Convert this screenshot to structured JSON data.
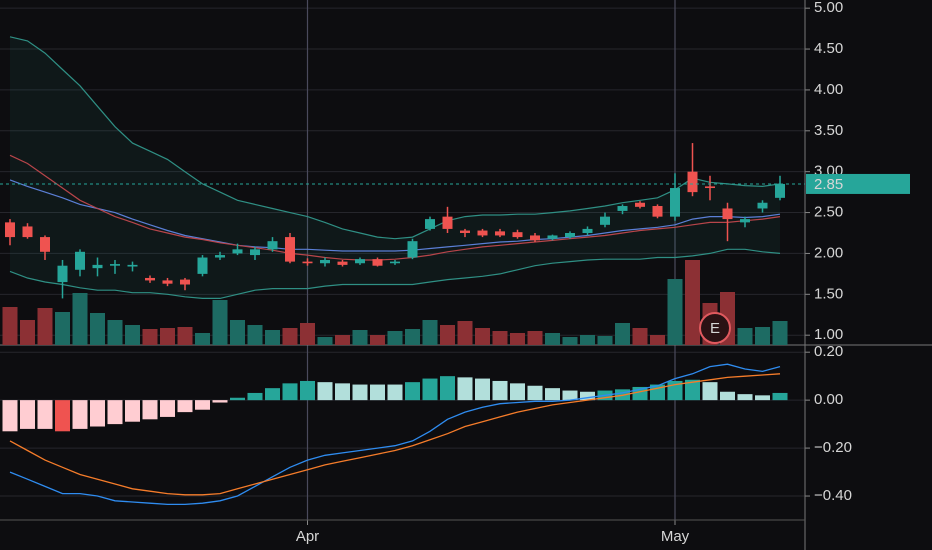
{
  "chart_data": [
    {
      "type": "candlestick",
      "categories": [
        null,
        null,
        null,
        null,
        null,
        null,
        null,
        null,
        null,
        null,
        null,
        null,
        null,
        null,
        null,
        null,
        null,
        "Apr",
        null,
        null,
        null,
        null,
        null,
        null,
        null,
        null,
        null,
        null,
        null,
        null,
        null,
        null,
        null,
        null,
        null,
        null,
        null,
        null,
        "May",
        null,
        null,
        null,
        null,
        null,
        null
      ],
      "open": [
        2.38,
        2.33,
        2.2,
        1.65,
        1.8,
        1.82,
        1.85,
        1.84,
        1.7,
        1.67,
        1.68,
        1.75,
        1.95,
        2.0,
        1.98,
        2.05,
        2.2,
        1.9,
        1.88,
        1.9,
        1.88,
        1.93,
        1.88,
        1.95,
        2.3,
        2.45,
        2.28,
        2.28,
        2.27,
        2.26,
        2.22,
        2.18,
        2.2,
        2.25,
        2.35,
        2.52,
        2.62,
        2.58,
        2.45,
        3.0,
        2.82,
        2.55,
        2.38,
        2.55,
        2.68
      ],
      "high": [
        2.42,
        2.37,
        2.22,
        1.92,
        2.05,
        1.95,
        1.92,
        1.9,
        1.73,
        1.7,
        1.7,
        1.98,
        2.02,
        2.12,
        2.08,
        2.2,
        2.25,
        1.94,
        1.95,
        1.92,
        1.95,
        1.95,
        1.92,
        2.18,
        2.45,
        2.57,
        2.3,
        2.3,
        2.3,
        2.29,
        2.25,
        2.23,
        2.27,
        2.33,
        2.5,
        2.6,
        2.64,
        2.6,
        2.98,
        3.35,
        2.95,
        2.62,
        2.45,
        2.65,
        2.95
      ],
      "low": [
        2.1,
        2.18,
        1.92,
        1.45,
        1.72,
        1.72,
        1.75,
        1.78,
        1.64,
        1.6,
        1.55,
        1.72,
        1.92,
        1.98,
        1.92,
        2.02,
        1.88,
        1.85,
        1.84,
        1.84,
        1.86,
        1.84,
        1.86,
        1.93,
        2.28,
        2.25,
        2.2,
        2.2,
        2.2,
        2.18,
        2.14,
        2.16,
        2.18,
        2.22,
        2.32,
        2.48,
        2.55,
        2.43,
        2.4,
        2.7,
        2.65,
        2.15,
        2.32,
        2.5,
        2.65
      ],
      "close": [
        2.2,
        2.2,
        2.02,
        1.85,
        2.02,
        1.86,
        1.87,
        1.86,
        1.67,
        1.63,
        1.62,
        1.95,
        1.98,
        2.05,
        2.05,
        2.15,
        1.9,
        1.88,
        1.92,
        1.86,
        1.93,
        1.85,
        1.9,
        2.15,
        2.42,
        2.3,
        2.25,
        2.22,
        2.22,
        2.2,
        2.16,
        2.22,
        2.25,
        2.3,
        2.45,
        2.58,
        2.57,
        2.45,
        2.8,
        2.75,
        2.8,
        2.42,
        2.42,
        2.62,
        2.85
      ],
      "volume": [
        38,
        25,
        37,
        33,
        52,
        32,
        25,
        20,
        16,
        17,
        18,
        12,
        45,
        25,
        20,
        15,
        17,
        22,
        8,
        10,
        15,
        10,
        14,
        16,
        25,
        20,
        24,
        17,
        14,
        12,
        14,
        12,
        8,
        10,
        9,
        22,
        17,
        10,
        66,
        85,
        42,
        53,
        17,
        18,
        24
      ],
      "up_color": "#26a69a",
      "down_color": "#ef5350",
      "volume_up_color": "#1d6b63",
      "volume_down_color": "#8c3034",
      "series": [
        {
          "color": "#2f8f84",
          "values": [
            4.65,
            4.6,
            4.45,
            4.25,
            4.05,
            3.8,
            3.55,
            3.35,
            3.25,
            3.15,
            3.0,
            2.85,
            2.75,
            2.65,
            2.6,
            2.55,
            2.5,
            2.45,
            2.38,
            2.3,
            2.25,
            2.2,
            2.18,
            2.2,
            2.3,
            2.4,
            2.45,
            2.47,
            2.47,
            2.48,
            2.48,
            2.5,
            2.52,
            2.55,
            2.58,
            2.62,
            2.65,
            2.68,
            2.78,
            2.92,
            2.87,
            2.85,
            2.83,
            2.82,
            2.85
          ]
        },
        {
          "color": "#2f8f84",
          "values": [
            1.78,
            1.7,
            1.65,
            1.62,
            1.58,
            1.55,
            1.55,
            1.52,
            1.52,
            1.5,
            1.47,
            1.45,
            1.45,
            1.5,
            1.55,
            1.57,
            1.57,
            1.57,
            1.6,
            1.62,
            1.62,
            1.62,
            1.62,
            1.62,
            1.65,
            1.68,
            1.7,
            1.72,
            1.75,
            1.8,
            1.85,
            1.88,
            1.9,
            1.92,
            1.93,
            1.93,
            1.93,
            1.95,
            1.95,
            1.97,
            2.0,
            2.05,
            2.05,
            2.02,
            2.0
          ]
        },
        {
          "color": "#5b7fd6",
          "values": [
            2.9,
            2.82,
            2.75,
            2.68,
            2.6,
            2.55,
            2.5,
            2.42,
            2.35,
            2.28,
            2.22,
            2.18,
            2.14,
            2.1,
            2.08,
            2.07,
            2.05,
            2.05,
            2.04,
            2.03,
            2.03,
            2.03,
            2.03,
            2.04,
            2.06,
            2.08,
            2.1,
            2.12,
            2.14,
            2.15,
            2.17,
            2.18,
            2.2,
            2.22,
            2.25,
            2.28,
            2.3,
            2.32,
            2.35,
            2.42,
            2.45,
            2.45,
            2.44,
            2.45,
            2.48
          ]
        },
        {
          "color": "#b8454a",
          "values": [
            3.2,
            3.1,
            2.95,
            2.8,
            2.65,
            2.55,
            2.45,
            2.38,
            2.3,
            2.25,
            2.2,
            2.17,
            2.13,
            2.1,
            2.07,
            2.04,
            2.0,
            1.98,
            1.95,
            1.93,
            1.92,
            1.92,
            1.93,
            1.95,
            1.98,
            2.02,
            2.05,
            2.08,
            2.1,
            2.12,
            2.14,
            2.16,
            2.18,
            2.2,
            2.22,
            2.25,
            2.28,
            2.3,
            2.32,
            2.35,
            2.38,
            2.38,
            2.4,
            2.42,
            2.45
          ]
        }
      ],
      "band_fill": "rgba(38,166,154,0.07)",
      "last_price": 2.85,
      "last_price_color": "#26a69a",
      "event_label": "E",
      "event_color": "#e05a5f",
      "ylim": [
        0.88,
        5.1
      ],
      "yticks": [
        {
          "value": 1,
          "label": "1.00"
        },
        {
          "value": 1.5,
          "label": "1.50"
        },
        {
          "value": 2,
          "label": "2.00"
        },
        {
          "value": 2.5,
          "label": "2.50"
        },
        {
          "value": 3,
          "label": "3.00"
        },
        {
          "value": 3.5,
          "label": "3.50"
        },
        {
          "value": 4,
          "label": "4.00"
        },
        {
          "value": 4.5,
          "label": "4.50"
        },
        {
          "value": 5,
          "label": "5.00"
        }
      ],
      "grid": true
    },
    {
      "type": "macd",
      "histogram": [
        -0.13,
        -0.12,
        -0.12,
        -0.13,
        -0.12,
        -0.11,
        -0.1,
        -0.09,
        -0.08,
        -0.07,
        -0.05,
        -0.04,
        -0.01,
        0.01,
        0.03,
        0.05,
        0.07,
        0.08,
        0.075,
        0.07,
        0.065,
        0.065,
        0.065,
        0.075,
        0.09,
        0.1,
        0.095,
        0.09,
        0.08,
        0.07,
        0.06,
        0.05,
        0.04,
        0.035,
        0.04,
        0.045,
        0.055,
        0.065,
        0.08,
        0.085,
        0.075,
        0.035,
        0.025,
        0.02,
        0.03
      ],
      "hist_colors": {
        "up_rising": "#26a69a",
        "up_falling": "#b2dfdb",
        "down_falling": "#ef5350",
        "down_rising": "#ffcdd2"
      },
      "series": [
        {
          "color": "#2f8cf0",
          "values": [
            -0.3,
            -0.33,
            -0.36,
            -0.39,
            -0.39,
            -0.4,
            -0.42,
            -0.425,
            -0.43,
            -0.435,
            -0.435,
            -0.43,
            -0.42,
            -0.4,
            -0.36,
            -0.32,
            -0.28,
            -0.25,
            -0.23,
            -0.22,
            -0.21,
            -0.2,
            -0.19,
            -0.17,
            -0.13,
            -0.08,
            -0.05,
            -0.03,
            -0.015,
            -0.01,
            -0.005,
            -0.005,
            0,
            0.01,
            0.02,
            0.03,
            0.045,
            0.06,
            0.09,
            0.11,
            0.14,
            0.15,
            0.13,
            0.12,
            0.14
          ]
        },
        {
          "color": "#f57c2a",
          "values": [
            -0.17,
            -0.21,
            -0.25,
            -0.28,
            -0.31,
            -0.33,
            -0.35,
            -0.37,
            -0.38,
            -0.39,
            -0.395,
            -0.395,
            -0.39,
            -0.37,
            -0.35,
            -0.33,
            -0.31,
            -0.29,
            -0.27,
            -0.255,
            -0.24,
            -0.225,
            -0.21,
            -0.19,
            -0.165,
            -0.14,
            -0.11,
            -0.09,
            -0.07,
            -0.05,
            -0.035,
            -0.02,
            -0.01,
            0,
            0.01,
            0.02,
            0.035,
            0.05,
            0.065,
            0.075,
            0.085,
            0.095,
            0.1,
            0.105,
            0.11
          ]
        }
      ],
      "ylim": [
        -0.5,
        0.23
      ],
      "yticks": [
        {
          "value": -0.4,
          "label": "−0.40"
        },
        {
          "value": -0.2,
          "label": "−0.20"
        },
        {
          "value": 0,
          "label": "0.00"
        },
        {
          "value": 0.2,
          "label": "0.20"
        }
      ],
      "grid": true
    }
  ]
}
